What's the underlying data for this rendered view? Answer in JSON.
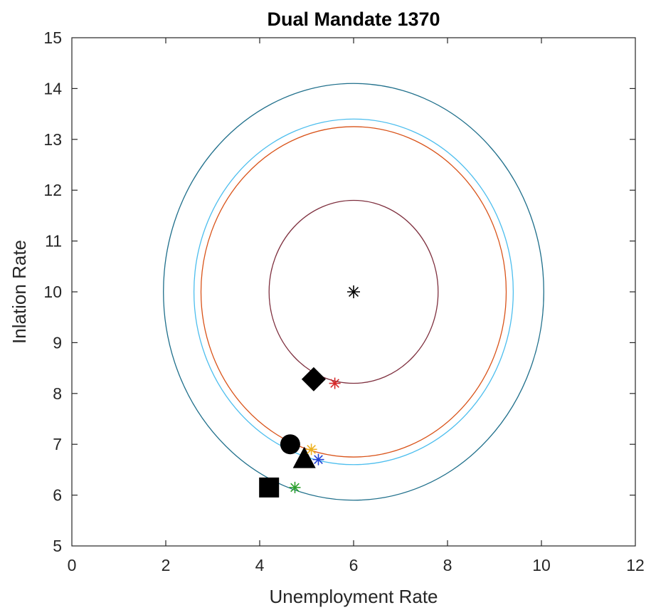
{
  "chart_data": {
    "type": "scatter",
    "title": "Dual Mandate  1370",
    "xlabel": "Unemployment Rate",
    "ylabel": "Inlation Rate",
    "xlim": [
      0,
      12
    ],
    "ylim": [
      5,
      15
    ],
    "x_ticks": [
      "0",
      "2",
      "4",
      "6",
      "8",
      "10",
      "12"
    ],
    "y_ticks": [
      "5",
      "6",
      "7",
      "8",
      "9",
      "10",
      "11",
      "12",
      "13",
      "14",
      "15"
    ],
    "grid": false,
    "legend": "none",
    "target": {
      "x": 6.0,
      "y": 10.0,
      "color": "#000000",
      "marker": "asterisk"
    },
    "contours": [
      {
        "cx": 6.0,
        "cy": 10.0,
        "rx": 1.8,
        "ry": 1.8,
        "color": "#7e2f3e"
      },
      {
        "cx": 6.0,
        "cy": 10.0,
        "rx": 3.25,
        "ry": 3.25,
        "color": "#d95319"
      },
      {
        "cx": 6.0,
        "cy": 10.0,
        "rx": 3.4,
        "ry": 3.4,
        "color": "#4dbeee"
      },
      {
        "cx": 6.0,
        "cy": 10.0,
        "rx": 4.05,
        "ry": 4.1,
        "color": "#1f6f8b"
      }
    ],
    "asterisk_points": [
      {
        "x": 5.6,
        "y": 8.2,
        "color": "#d62728"
      },
      {
        "x": 5.1,
        "y": 6.9,
        "color": "#edb120"
      },
      {
        "x": 5.25,
        "y": 6.7,
        "color": "#1f3fd6"
      },
      {
        "x": 4.75,
        "y": 6.15,
        "color": "#2ca02c"
      }
    ],
    "shape_points": [
      {
        "shape": "diamond",
        "x": 5.15,
        "y": 8.28,
        "color": "#000000"
      },
      {
        "shape": "circle",
        "x": 4.65,
        "y": 7.0,
        "color": "#000000"
      },
      {
        "shape": "triangle",
        "x": 4.95,
        "y": 6.7,
        "color": "#000000"
      },
      {
        "shape": "square",
        "x": 4.2,
        "y": 6.15,
        "color": "#000000"
      }
    ]
  }
}
